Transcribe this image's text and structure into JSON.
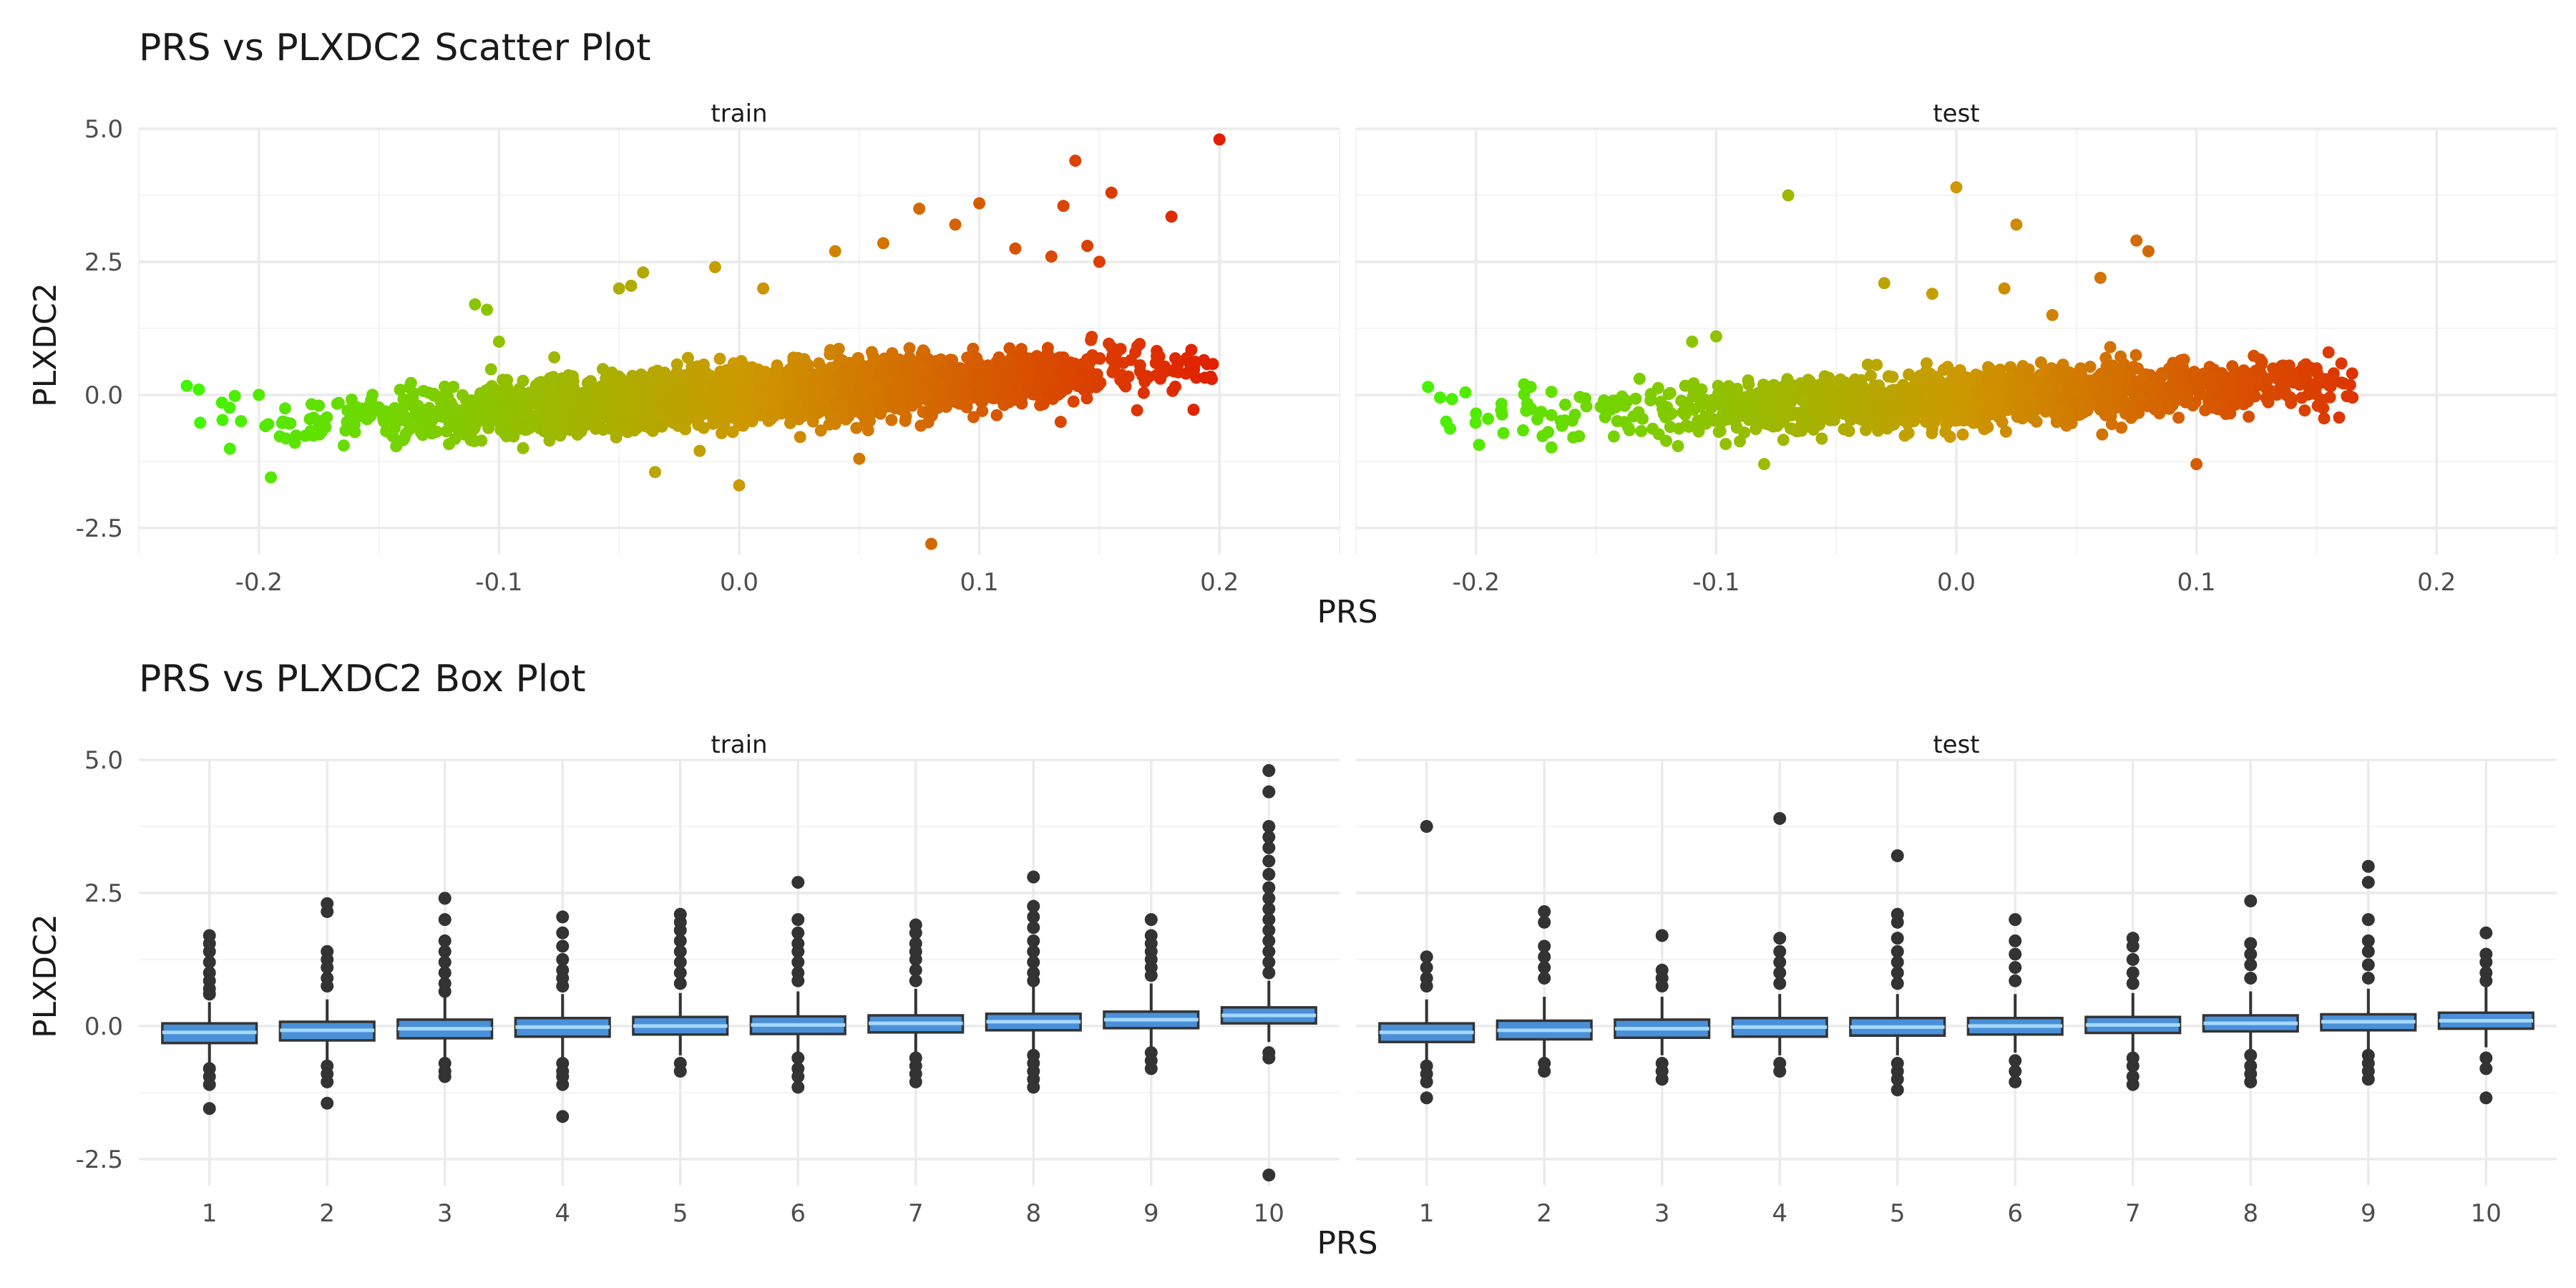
{
  "chart_data": [
    {
      "type": "scatter",
      "title": "PRS vs PLXDC2 Scatter Plot",
      "xlabel": "PRS",
      "ylabel": "PLXDC2",
      "facets": [
        "train",
        "test"
      ],
      "xlim": [
        -0.25,
        0.25
      ],
      "ylim": [
        -3.0,
        5.0
      ],
      "x_ticks": [
        -0.2,
        -0.1,
        0.0,
        0.1,
        0.2
      ],
      "x_tick_labels": [
        "-0.2",
        "-0.1",
        "0.0",
        "0.1",
        "0.2"
      ],
      "y_ticks": [
        -2.5,
        0.0,
        2.5,
        5.0
      ],
      "y_tick_labels": [
        "-2.5",
        "0.0",
        "2.5",
        "5.0"
      ],
      "color_scale": {
        "variable": "PRS",
        "low": "#33ff00",
        "mid": "#cc9900",
        "high": "#e60000"
      },
      "grid": true,
      "legend": "none",
      "panels": [
        {
          "name": "train",
          "prs_range": [
            -0.23,
            0.2
          ],
          "trend": {
            "intercept": 0.0,
            "slope": 2.6
          },
          "points": [
            [
              -0.23,
              0.17
            ],
            [
              -0.225,
              0.1
            ],
            [
              -0.21,
              -0.02
            ],
            [
              -0.2,
              0.0
            ],
            [
              -0.195,
              -1.55
            ],
            [
              -0.19,
              -0.5
            ],
            [
              -0.185,
              -0.9
            ],
            [
              -0.16,
              -0.7
            ],
            [
              -0.14,
              -0.85
            ],
            [
              -0.11,
              1.7
            ],
            [
              -0.105,
              1.6
            ],
            [
              -0.1,
              1.0
            ],
            [
              -0.09,
              -1.0
            ],
            [
              -0.05,
              2.0
            ],
            [
              -0.045,
              2.05
            ],
            [
              -0.04,
              2.3
            ],
            [
              -0.035,
              -1.45
            ],
            [
              -0.01,
              2.4
            ],
            [
              0.0,
              -1.7
            ],
            [
              0.01,
              2.0
            ],
            [
              0.04,
              2.7
            ],
            [
              0.05,
              -1.2
            ],
            [
              0.06,
              2.85
            ],
            [
              0.075,
              3.5
            ],
            [
              0.08,
              -2.8
            ],
            [
              0.09,
              3.2
            ],
            [
              0.1,
              3.6
            ],
            [
              0.115,
              2.75
            ],
            [
              0.13,
              2.6
            ],
            [
              0.135,
              3.55
            ],
            [
              0.14,
              4.4
            ],
            [
              0.145,
              2.8
            ],
            [
              0.15,
              2.5
            ],
            [
              0.155,
              3.8
            ],
            [
              0.16,
              0.6
            ],
            [
              0.165,
              0.8
            ],
            [
              0.17,
              0.35
            ],
            [
              0.18,
              3.35
            ],
            [
              0.2,
              4.8
            ]
          ]
        },
        {
          "name": "test",
          "prs_range": [
            -0.22,
            0.165
          ],
          "trend": {
            "intercept": -0.05,
            "slope": 1.9
          },
          "points": [
            [
              -0.22,
              0.15
            ],
            [
              -0.215,
              -0.05
            ],
            [
              -0.21,
              -0.08
            ],
            [
              -0.2,
              -0.35
            ],
            [
              -0.195,
              -0.45
            ],
            [
              -0.18,
              0.2
            ],
            [
              -0.17,
              -0.7
            ],
            [
              -0.11,
              1.0
            ],
            [
              -0.1,
              1.1
            ],
            [
              -0.08,
              -1.3
            ],
            [
              -0.07,
              3.75
            ],
            [
              -0.03,
              2.1
            ],
            [
              -0.01,
              1.9
            ],
            [
              0.0,
              3.9
            ],
            [
              0.02,
              2.0
            ],
            [
              0.025,
              3.2
            ],
            [
              0.04,
              1.5
            ],
            [
              0.06,
              2.2
            ],
            [
              0.075,
              2.9
            ],
            [
              0.08,
              2.7
            ],
            [
              0.1,
              -1.3
            ],
            [
              0.13,
              0.3
            ],
            [
              0.145,
              0.4
            ],
            [
              0.15,
              0.5
            ],
            [
              0.155,
              0.8
            ],
            [
              0.165,
              -0.05
            ]
          ]
        }
      ]
    },
    {
      "type": "box",
      "title": "PRS vs PLXDC2 Box Plot",
      "xlabel": "PRS",
      "ylabel": "PLXDC2",
      "facets": [
        "train",
        "test"
      ],
      "categories": [
        "1",
        "2",
        "3",
        "4",
        "5",
        "6",
        "7",
        "8",
        "9",
        "10"
      ],
      "ylim": [
        -3.0,
        5.0
      ],
      "y_ticks": [
        -2.5,
        0.0,
        2.5,
        5.0
      ],
      "y_tick_labels": [
        "-2.5",
        "0.0",
        "2.5",
        "5.0"
      ],
      "box_fill": "#4a90d9",
      "median_color": "#a6d8ff",
      "outline_color": "#333333",
      "grid": true,
      "panels": [
        {
          "name": "train",
          "boxes": [
            {
              "q1": -0.32,
              "median": -0.12,
              "q3": 0.05,
              "whisker_low": -0.7,
              "whisker_high": 0.45,
              "outliers": [
                1.7,
                1.55,
                1.4,
                1.2,
                1.0,
                0.85,
                0.7,
                0.6,
                -0.8,
                -0.95,
                -1.1,
                -1.55
              ]
            },
            {
              "q1": -0.27,
              "median": -0.08,
              "q3": 0.08,
              "whisker_low": -0.65,
              "whisker_high": 0.5,
              "outliers": [
                2.3,
                2.15,
                1.4,
                1.25,
                1.1,
                0.9,
                0.75,
                -0.75,
                -0.9,
                -1.05,
                -1.45
              ]
            },
            {
              "q1": -0.23,
              "median": -0.05,
              "q3": 0.12,
              "whisker_low": -0.6,
              "whisker_high": 0.55,
              "outliers": [
                2.4,
                2.0,
                1.6,
                1.4,
                1.2,
                1.0,
                0.8,
                0.65,
                -0.7,
                -0.85,
                -0.95
              ]
            },
            {
              "q1": -0.2,
              "median": -0.02,
              "q3": 0.15,
              "whisker_low": -0.6,
              "whisker_high": 0.6,
              "outliers": [
                2.05,
                1.75,
                1.5,
                1.25,
                1.05,
                0.9,
                0.75,
                -0.7,
                -0.85,
                -0.95,
                -1.1,
                -1.7
              ]
            },
            {
              "q1": -0.16,
              "median": 0.0,
              "q3": 0.17,
              "whisker_low": -0.55,
              "whisker_high": 0.62,
              "outliers": [
                2.1,
                1.95,
                1.8,
                1.6,
                1.4,
                1.2,
                1.0,
                0.8,
                -0.7,
                -0.85
              ]
            },
            {
              "q1": -0.15,
              "median": 0.02,
              "q3": 0.18,
              "whisker_low": -0.55,
              "whisker_high": 0.65,
              "outliers": [
                2.7,
                2.0,
                1.75,
                1.55,
                1.4,
                1.2,
                1.0,
                0.85,
                -0.6,
                -0.8,
                -0.95,
                -1.15
              ]
            },
            {
              "q1": -0.12,
              "median": 0.05,
              "q3": 0.2,
              "whisker_low": -0.5,
              "whisker_high": 0.7,
              "outliers": [
                1.9,
                1.75,
                1.55,
                1.4,
                1.25,
                1.05,
                0.85,
                -0.6,
                -0.75,
                -0.9,
                -1.05
              ]
            },
            {
              "q1": -0.08,
              "median": 0.08,
              "q3": 0.23,
              "whisker_low": -0.45,
              "whisker_high": 0.75,
              "outliers": [
                2.8,
                2.25,
                2.05,
                1.85,
                1.6,
                1.4,
                1.2,
                1.0,
                0.85,
                -0.55,
                -0.7,
                -0.85,
                -1.0,
                -1.15
              ]
            },
            {
              "q1": -0.04,
              "median": 0.12,
              "q3": 0.27,
              "whisker_low": -0.4,
              "whisker_high": 0.8,
              "outliers": [
                2.0,
                1.7,
                1.55,
                1.4,
                1.25,
                1.1,
                0.95,
                -0.5,
                -0.65,
                -0.8
              ]
            },
            {
              "q1": 0.05,
              "median": 0.2,
              "q3": 0.35,
              "whisker_low": -0.3,
              "whisker_high": 0.85,
              "outliers": [
                4.8,
                4.4,
                3.75,
                3.55,
                3.35,
                3.1,
                2.85,
                2.6,
                2.4,
                2.2,
                2.0,
                1.8,
                1.6,
                1.4,
                1.2,
                1.0,
                -0.5,
                -0.6,
                -2.8
              ]
            }
          ]
        },
        {
          "name": "test",
          "boxes": [
            {
              "q1": -0.3,
              "median": -0.12,
              "q3": 0.05,
              "whisker_low": -0.65,
              "whisker_high": 0.5,
              "outliers": [
                3.75,
                1.3,
                1.1,
                0.9,
                0.75,
                -0.75,
                -0.9,
                -1.05,
                -1.35
              ]
            },
            {
              "q1": -0.25,
              "median": -0.08,
              "q3": 0.1,
              "whisker_low": -0.6,
              "whisker_high": 0.55,
              "outliers": [
                2.15,
                1.95,
                1.5,
                1.3,
                1.1,
                0.9,
                -0.7,
                -0.85
              ]
            },
            {
              "q1": -0.22,
              "median": -0.05,
              "q3": 0.12,
              "whisker_low": -0.55,
              "whisker_high": 0.55,
              "outliers": [
                1.7,
                1.05,
                0.9,
                0.75,
                -0.7,
                -0.85,
                -1.0
              ]
            },
            {
              "q1": -0.2,
              "median": -0.02,
              "q3": 0.15,
              "whisker_low": -0.55,
              "whisker_high": 0.6,
              "outliers": [
                3.9,
                1.65,
                1.4,
                1.2,
                1.0,
                0.8,
                -0.7,
                -0.85
              ]
            },
            {
              "q1": -0.18,
              "median": -0.02,
              "q3": 0.15,
              "whisker_low": -0.55,
              "whisker_high": 0.6,
              "outliers": [
                3.2,
                2.1,
                1.95,
                1.65,
                1.4,
                1.2,
                1.0,
                0.8,
                -0.7,
                -0.85,
                -1.0,
                -1.2
              ]
            },
            {
              "q1": -0.16,
              "median": 0.0,
              "q3": 0.15,
              "whisker_low": -0.5,
              "whisker_high": 0.6,
              "outliers": [
                2.0,
                1.6,
                1.35,
                1.1,
                0.85,
                -0.65,
                -0.85,
                -1.05
              ]
            },
            {
              "q1": -0.13,
              "median": 0.02,
              "q3": 0.17,
              "whisker_low": -0.5,
              "whisker_high": 0.62,
              "outliers": [
                1.65,
                1.5,
                1.25,
                1.0,
                0.8,
                -0.6,
                -0.75,
                -0.95,
                -1.1
              ]
            },
            {
              "q1": -0.1,
              "median": 0.05,
              "q3": 0.2,
              "whisker_low": -0.45,
              "whisker_high": 0.65,
              "outliers": [
                2.35,
                1.55,
                1.35,
                1.15,
                0.9,
                -0.55,
                -0.75,
                -0.9,
                -1.05
              ]
            },
            {
              "q1": -0.08,
              "median": 0.08,
              "q3": 0.22,
              "whisker_low": -0.45,
              "whisker_high": 0.7,
              "outliers": [
                3.0,
                2.7,
                2.0,
                1.6,
                1.4,
                1.15,
                0.9,
                -0.55,
                -0.7,
                -0.85,
                -1.0
              ]
            },
            {
              "q1": -0.05,
              "median": 0.1,
              "q3": 0.25,
              "whisker_low": -0.4,
              "whisker_high": 0.75,
              "outliers": [
                1.75,
                1.35,
                1.2,
                1.0,
                0.85,
                -0.6,
                -0.8,
                -1.35
              ]
            }
          ]
        }
      ]
    }
  ]
}
